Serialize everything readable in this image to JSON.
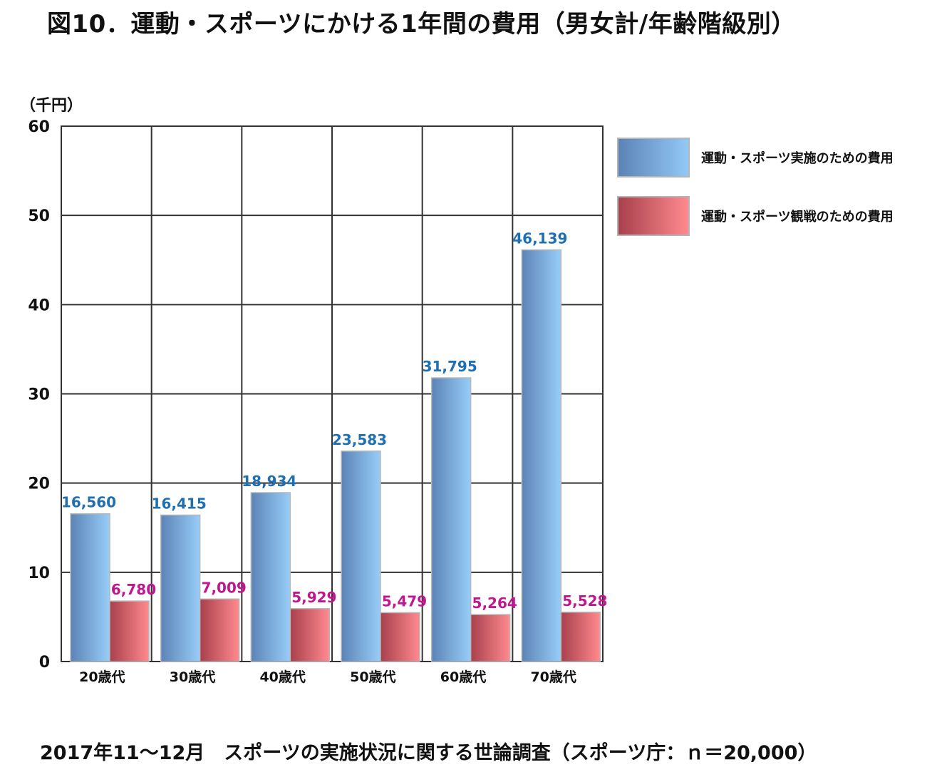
{
  "title": "図10．運動・スポーツにかける1年間の費用（男女計/年齢階級別）",
  "unit_label": "（千円）",
  "footer": "2017年11～12月　スポーツの実施状況に関する世論調査（スポーツ庁：ｎ＝20,000）",
  "legend": [
    {
      "label": "運動・スポーツ実施のための費用",
      "color": "#7fb3e8"
    },
    {
      "label": "運動・スポーツ観戦のための費用",
      "color": "#e06070"
    }
  ],
  "chart_data": {
    "type": "bar",
    "categories": [
      "20歳代",
      "30歳代",
      "40歳代",
      "50歳代",
      "60歳代",
      "70歳代"
    ],
    "series": [
      {
        "name": "運動・スポーツ実施のための費用",
        "values": [
          16.56,
          16.415,
          18.934,
          23.583,
          31.795,
          46.139
        ],
        "labels": [
          "16,560",
          "16,415",
          "18,934",
          "23,583",
          "31,795",
          "46,139"
        ],
        "label_color": "#1f6fb2"
      },
      {
        "name": "運動・スポーツ観戦のための費用",
        "values": [
          6.78,
          7.009,
          5.929,
          5.479,
          5.264,
          5.528
        ],
        "labels": [
          "6,780",
          "7,009",
          "5,929",
          "5,479",
          "5,264",
          "5,528"
        ],
        "label_color": "#c0168f"
      }
    ],
    "yticks": [
      "0",
      "10",
      "20",
      "30",
      "40",
      "50",
      "60"
    ],
    "ylim": [
      0,
      60
    ],
    "grid": true,
    "legend_position": "right"
  }
}
